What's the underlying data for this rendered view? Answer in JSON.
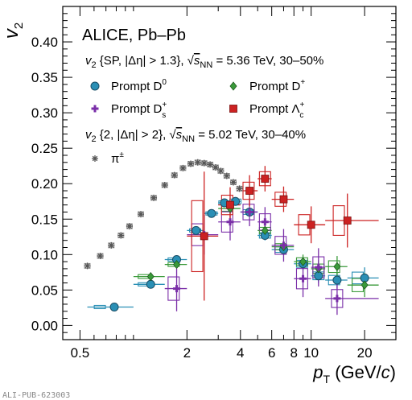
{
  "chart_data": {
    "type": "scatter",
    "title": "ALICE, Pb–Pb",
    "xlabel": "p_T (GeV/c)",
    "xlabel_parts": {
      "symbol": "p",
      "subscript": "T",
      "unit_open": " (GeV/",
      "unit_c": "c",
      "unit_close": ")"
    },
    "ylabel": "v_2",
    "ylabel_parts": {
      "symbol": "v",
      "subscript": "2"
    },
    "x_scale": "log",
    "xlim": [
      0.4,
      30
    ],
    "ylim": [
      -0.02,
      0.45
    ],
    "x_ticks": [
      0.5,
      2,
      4,
      6,
      8,
      10,
      20
    ],
    "x_tick_labels": [
      "0.5",
      "2",
      "4",
      "6",
      "8",
      "10",
      "20"
    ],
    "y_ticks": [
      0.0,
      0.05,
      0.1,
      0.15,
      0.2,
      0.25,
      0.3,
      0.35,
      0.4
    ],
    "y_tick_labels": [
      "0.00",
      "0.05",
      "0.10",
      "0.15",
      "0.20",
      "0.25",
      "0.30",
      "0.35",
      "0.40"
    ],
    "grid": false,
    "legend_position": "top-left",
    "annotations": {
      "sp_header_parts": [
        "v",
        "2",
        " {SP, |Δη| > 1.3},  ",
        "√",
        "s",
        "NN",
        " = 5.36 TeV, 30–50%"
      ],
      "two_header_parts": [
        "v",
        "2",
        " {2, |Δη| > 2},  ",
        "√",
        "s",
        "NN",
        " = 5.02 TeV, 30–40%"
      ]
    },
    "series": [
      {
        "name": "Prompt D⁰",
        "name_parts": [
          "Prompt D",
          "0",
          ""
        ],
        "color": "#2a8fb5",
        "marker": "circle",
        "points": [
          {
            "x": 0.78,
            "y": 0.026,
            "xlo": 0.55,
            "xhi": 1.0,
            "ylo": 0.022,
            "yhi": 0.03
          },
          {
            "x": 1.25,
            "y": 0.058,
            "xlo": 1.0,
            "xhi": 1.5,
            "ylo": 0.055,
            "yhi": 0.062
          },
          {
            "x": 1.75,
            "y": 0.093,
            "xlo": 1.5,
            "xhi": 2.0,
            "ylo": 0.089,
            "yhi": 0.097
          },
          {
            "x": 2.25,
            "y": 0.134,
            "xlo": 2.0,
            "xhi": 2.5,
            "ylo": 0.13,
            "yhi": 0.138
          },
          {
            "x": 2.75,
            "y": 0.158,
            "xlo": 2.5,
            "xhi": 3.0,
            "ylo": 0.154,
            "yhi": 0.162
          },
          {
            "x": 3.25,
            "y": 0.173,
            "xlo": 3.0,
            "xhi": 3.5,
            "ylo": 0.168,
            "yhi": 0.178
          },
          {
            "x": 3.75,
            "y": 0.175,
            "xlo": 3.5,
            "xhi": 4.0,
            "ylo": 0.169,
            "yhi": 0.181
          },
          {
            "x": 4.5,
            "y": 0.16,
            "xlo": 4.0,
            "xhi": 5.0,
            "ylo": 0.154,
            "yhi": 0.166
          },
          {
            "x": 5.5,
            "y": 0.127,
            "xlo": 5.0,
            "xhi": 6.0,
            "ylo": 0.12,
            "yhi": 0.134
          },
          {
            "x": 7.0,
            "y": 0.107,
            "xlo": 6.0,
            "xhi": 8.0,
            "ylo": 0.1,
            "yhi": 0.114
          },
          {
            "x": 9.0,
            "y": 0.087,
            "xlo": 8.0,
            "xhi": 10.0,
            "ylo": 0.078,
            "yhi": 0.096
          },
          {
            "x": 11.0,
            "y": 0.07,
            "xlo": 10.0,
            "xhi": 12.0,
            "ylo": 0.06,
            "yhi": 0.08
          },
          {
            "x": 14.0,
            "y": 0.064,
            "xlo": 12.0,
            "xhi": 16.0,
            "ylo": 0.052,
            "yhi": 0.076
          },
          {
            "x": 20.0,
            "y": 0.067,
            "xlo": 16.0,
            "xhi": 24.0,
            "ylo": 0.052,
            "yhi": 0.082
          }
        ]
      },
      {
        "name": "Prompt D⁺",
        "name_parts": [
          "Prompt D",
          "+",
          ""
        ],
        "color": "#3a9a3a",
        "marker": "diamond",
        "points": [
          {
            "x": 1.25,
            "y": 0.069,
            "xlo": 1.0,
            "xhi": 1.5,
            "ylo": 0.064,
            "yhi": 0.074
          },
          {
            "x": 1.75,
            "y": 0.086,
            "xlo": 1.5,
            "xhi": 2.0,
            "ylo": 0.081,
            "yhi": 0.091
          },
          {
            "x": 3.5,
            "y": 0.165,
            "xlo": 3.0,
            "xhi": 4.0,
            "ylo": 0.158,
            "yhi": 0.172
          },
          {
            "x": 5.5,
            "y": 0.134,
            "xlo": 5.0,
            "xhi": 6.0,
            "ylo": 0.126,
            "yhi": 0.142
          },
          {
            "x": 7.0,
            "y": 0.111,
            "xlo": 6.0,
            "xhi": 8.0,
            "ylo": 0.103,
            "yhi": 0.119
          },
          {
            "x": 9.0,
            "y": 0.09,
            "xlo": 8.0,
            "xhi": 10.0,
            "ylo": 0.08,
            "yhi": 0.1
          },
          {
            "x": 11.0,
            "y": 0.08,
            "xlo": 10.0,
            "xhi": 12.0,
            "ylo": 0.068,
            "yhi": 0.092
          },
          {
            "x": 14.0,
            "y": 0.083,
            "xlo": 12.0,
            "xhi": 16.0,
            "ylo": 0.068,
            "yhi": 0.098
          },
          {
            "x": 20.0,
            "y": 0.057,
            "xlo": 16.0,
            "xhi": 24.0,
            "ylo": 0.04,
            "yhi": 0.074
          }
        ]
      },
      {
        "name": "Prompt Dₛ⁺",
        "name_parts": [
          "Prompt D",
          "+",
          "s"
        ],
        "color": "#7a2ea8",
        "marker": "plus",
        "points": [
          {
            "x": 1.75,
            "y": 0.052,
            "xlo": 1.5,
            "xhi": 2.0,
            "ylo": 0.02,
            "yhi": 0.08
          },
          {
            "x": 2.5,
            "y": 0.128,
            "xlo": 2.0,
            "xhi": 3.0,
            "ylo": 0.1,
            "yhi": 0.156
          },
          {
            "x": 3.5,
            "y": 0.146,
            "xlo": 3.0,
            "xhi": 4.0,
            "ylo": 0.12,
            "yhi": 0.172
          },
          {
            "x": 4.5,
            "y": 0.16,
            "xlo": 4.0,
            "xhi": 5.0,
            "ylo": 0.14,
            "yhi": 0.18
          },
          {
            "x": 5.5,
            "y": 0.146,
            "xlo": 5.0,
            "xhi": 6.0,
            "ylo": 0.125,
            "yhi": 0.167
          },
          {
            "x": 7.0,
            "y": 0.113,
            "xlo": 6.0,
            "xhi": 8.0,
            "ylo": 0.09,
            "yhi": 0.136
          },
          {
            "x": 9.0,
            "y": 0.066,
            "xlo": 8.0,
            "xhi": 10.0,
            "ylo": 0.04,
            "yhi": 0.092
          },
          {
            "x": 11.0,
            "y": 0.082,
            "xlo": 10.0,
            "xhi": 12.0,
            "ylo": 0.055,
            "yhi": 0.109
          },
          {
            "x": 14.0,
            "y": 0.038,
            "xlo": 12.0,
            "xhi": 24.0,
            "ylo": 0.015,
            "yhi": 0.061
          }
        ]
      },
      {
        "name": "Prompt Λᶜ⁺",
        "name_parts": [
          "Prompt Λ",
          "+",
          "c"
        ],
        "color": "#cc2222",
        "marker": "square",
        "points": [
          {
            "x": 2.5,
            "y": 0.126,
            "xlo": 2.0,
            "xhi": 3.0,
            "ylo": 0.035,
            "yhi": 0.217
          },
          {
            "x": 3.5,
            "y": 0.17,
            "xlo": 3.0,
            "xhi": 4.0,
            "ylo": 0.145,
            "yhi": 0.195
          },
          {
            "x": 4.5,
            "y": 0.19,
            "xlo": 4.0,
            "xhi": 5.0,
            "ylo": 0.168,
            "yhi": 0.212
          },
          {
            "x": 5.5,
            "y": 0.207,
            "xlo": 5.0,
            "xhi": 6.0,
            "ylo": 0.189,
            "yhi": 0.225
          },
          {
            "x": 7.0,
            "y": 0.178,
            "xlo": 6.0,
            "xhi": 8.0,
            "ylo": 0.16,
            "yhi": 0.196
          },
          {
            "x": 10.0,
            "y": 0.142,
            "xlo": 8.0,
            "xhi": 12.0,
            "ylo": 0.116,
            "yhi": 0.168
          },
          {
            "x": 16.0,
            "y": 0.148,
            "xlo": 12.0,
            "xhi": 24.0,
            "ylo": 0.11,
            "yhi": 0.186
          }
        ]
      },
      {
        "name": "π±",
        "name_parts": [
          "π",
          "±",
          ""
        ],
        "color": "#555555",
        "marker": "star",
        "points": [
          {
            "x": 0.55,
            "y": 0.084
          },
          {
            "x": 0.65,
            "y": 0.098
          },
          {
            "x": 0.75,
            "y": 0.113
          },
          {
            "x": 0.85,
            "y": 0.127
          },
          {
            "x": 0.95,
            "y": 0.14
          },
          {
            "x": 1.1,
            "y": 0.157
          },
          {
            "x": 1.3,
            "y": 0.18
          },
          {
            "x": 1.5,
            "y": 0.198
          },
          {
            "x": 1.7,
            "y": 0.212
          },
          {
            "x": 1.9,
            "y": 0.222
          },
          {
            "x": 2.1,
            "y": 0.228
          },
          {
            "x": 2.3,
            "y": 0.23
          },
          {
            "x": 2.5,
            "y": 0.229
          },
          {
            "x": 2.7,
            "y": 0.227
          },
          {
            "x": 2.9,
            "y": 0.223
          },
          {
            "x": 3.1,
            "y": 0.218
          },
          {
            "x": 3.35,
            "y": 0.211
          },
          {
            "x": 3.65,
            "y": 0.202
          },
          {
            "x": 3.95,
            "y": 0.193
          }
        ]
      }
    ]
  },
  "watermark": "ALI-PUB-623003"
}
